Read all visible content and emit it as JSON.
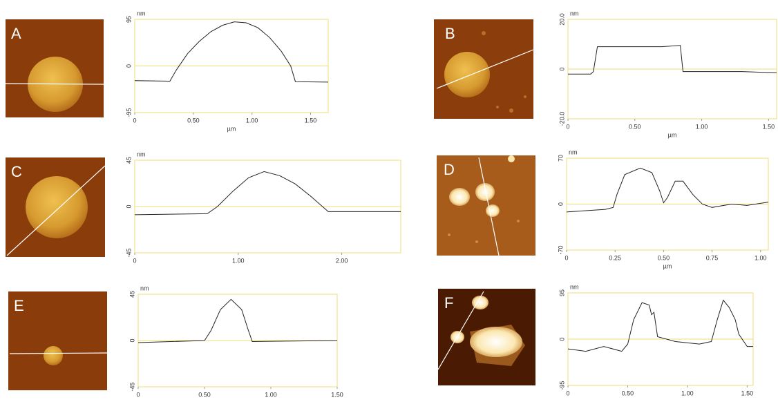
{
  "chart_data": [
    {
      "type": "line",
      "panel": "A",
      "ylabel": "nm",
      "xlabel": "µm",
      "xlim": [
        0,
        1.65
      ],
      "ylim": [
        -95,
        95
      ],
      "xticks": [
        0,
        {
          "value": 0.5,
          "label": "0.50"
        },
        {
          "value": 1.0,
          "label": "1.00"
        },
        {
          "value": 1.5,
          "label": "1.50"
        }
      ],
      "yticks": [
        -95,
        0,
        95
      ],
      "color": "#222",
      "x": [
        0,
        0.3,
        0.35,
        0.45,
        0.55,
        0.65,
        0.75,
        0.85,
        0.95,
        1.05,
        1.15,
        1.25,
        1.33,
        1.37,
        1.65
      ],
      "values": [
        -30,
        -31,
        -10,
        25,
        50,
        70,
        83,
        90,
        88,
        78,
        58,
        30,
        0,
        -32,
        -33
      ]
    },
    {
      "type": "line",
      "panel": "B",
      "ylabel": "nm",
      "xlabel": "µm",
      "xlim": [
        0,
        1.56
      ],
      "ylim": [
        -20,
        20
      ],
      "xticks": [
        0,
        {
          "value": 0.5,
          "label": "0.50"
        },
        {
          "value": 1.0,
          "label": "1.00"
        },
        {
          "value": 1.5,
          "label": "1.50"
        }
      ],
      "yticks": [
        {
          "value": -20,
          "label": "-20.0"
        },
        0,
        {
          "value": 20,
          "label": "20.0"
        }
      ],
      "color": "#222",
      "x": [
        0,
        0.17,
        0.19,
        0.22,
        0.3,
        0.5,
        0.7,
        0.84,
        0.86,
        1.0,
        1.3,
        1.56
      ],
      "values": [
        -2,
        -2,
        -1,
        9,
        9,
        9,
        9,
        9.5,
        -1,
        -1,
        -1,
        -1.5
      ]
    },
    {
      "type": "line",
      "panel": "C",
      "ylabel": "nm",
      "xlim": [
        0,
        2.57
      ],
      "ylim": [
        -45,
        45
      ],
      "xticks": [
        0,
        {
          "value": 1.0,
          "label": "1.00"
        },
        {
          "value": 2.0,
          "label": "2.00"
        }
      ],
      "yticks": [
        -45,
        0,
        45
      ],
      "color": "#222",
      "x": [
        0,
        0.7,
        0.8,
        0.95,
        1.1,
        1.25,
        1.4,
        1.55,
        1.7,
        1.87,
        2.57
      ],
      "values": [
        -8,
        -7,
        0,
        15,
        28,
        34,
        30,
        22,
        10,
        -5,
        -5
      ]
    },
    {
      "type": "line",
      "panel": "D",
      "ylabel": "nm",
      "xlabel": "µm",
      "xlim": [
        0,
        1.04
      ],
      "ylim": [
        -70,
        70
      ],
      "xticks": [
        0,
        0.25,
        {
          "value": 0.5,
          "label": "0.50"
        },
        0.75,
        {
          "value": 1.0,
          "label": "1.00"
        }
      ],
      "yticks": [
        -70,
        0,
        70
      ],
      "color": "#222",
      "x": [
        0,
        0.1,
        0.2,
        0.24,
        0.26,
        0.3,
        0.38,
        0.44,
        0.48,
        0.5,
        0.52,
        0.56,
        0.6,
        0.65,
        0.7,
        0.75,
        0.85,
        0.93,
        1.04
      ],
      "values": [
        -12,
        -10,
        -8,
        -5,
        15,
        45,
        55,
        48,
        20,
        2,
        10,
        35,
        35,
        15,
        0,
        -5,
        0,
        -2,
        3
      ]
    },
    {
      "type": "line",
      "panel": "E",
      "ylabel": "nm",
      "xlim": [
        0,
        1.5
      ],
      "ylim": [
        -45,
        45
      ],
      "xticks": [
        0,
        {
          "value": 0.5,
          "label": "0.50"
        },
        {
          "value": 1.0,
          "label": "1.00"
        },
        {
          "value": 1.5,
          "label": "1.50"
        }
      ],
      "yticks": [
        -45,
        0,
        45
      ],
      "color": "#222",
      "x": [
        0,
        0.5,
        0.55,
        0.62,
        0.7,
        0.78,
        0.83,
        0.86,
        1.5
      ],
      "values": [
        -2,
        0,
        10,
        30,
        40,
        30,
        10,
        -1,
        0
      ]
    },
    {
      "type": "line",
      "panel": "F",
      "ylabel": "nm",
      "xlim": [
        0,
        1.55
      ],
      "ylim": [
        -95,
        95
      ],
      "xticks": [
        0,
        {
          "value": 0.5,
          "label": "0.50"
        },
        {
          "value": 1.0,
          "label": "1.00"
        },
        {
          "value": 1.5,
          "label": "1.50"
        }
      ],
      "yticks": [
        -95,
        0,
        95
      ],
      "color": "#222",
      "x": [
        0,
        0.15,
        0.3,
        0.45,
        0.5,
        0.55,
        0.62,
        0.68,
        0.7,
        0.72,
        0.75,
        0.9,
        1.1,
        1.2,
        1.25,
        1.3,
        1.35,
        1.4,
        1.43,
        1.5,
        1.55
      ],
      "values": [
        -20,
        -25,
        -15,
        -25,
        -10,
        40,
        75,
        70,
        50,
        55,
        5,
        -5,
        -10,
        -5,
        40,
        80,
        65,
        40,
        10,
        -15,
        -15
      ]
    }
  ]
}
